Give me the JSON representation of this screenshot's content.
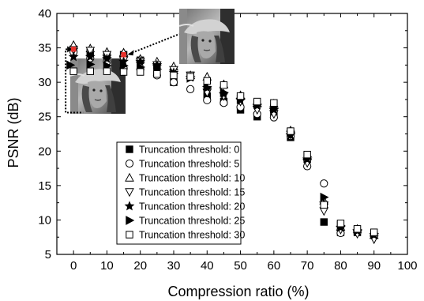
{
  "chart_data": {
    "type": "scatter",
    "xlabel": "Compression ratio (%)",
    "ylabel": "PSNR (dB)",
    "xlim": [
      -5,
      100
    ],
    "ylim": [
      5,
      40
    ],
    "xticks": [
      "0",
      "10",
      "20",
      "30",
      "40",
      "50",
      "60",
      "70",
      "80",
      "90",
      "100"
    ],
    "yticks": [
      "5",
      "10",
      "15",
      "20",
      "25",
      "30",
      "35",
      "40"
    ],
    "grid": false,
    "legend_position": "bottom-center",
    "series": [
      {
        "name": "Truncation threshold: 0",
        "marker": "filled-square",
        "points": [
          [
            0,
            34.8
          ],
          [
            5,
            34.3
          ],
          [
            10,
            33.9
          ],
          [
            15,
            34.0
          ],
          [
            20,
            33.2
          ],
          [
            25,
            32.4
          ],
          [
            30,
            30.0
          ],
          [
            35,
            31.0
          ],
          [
            40,
            28.0
          ],
          [
            45,
            27.2
          ],
          [
            50,
            26.0
          ],
          [
            55,
            25.0
          ],
          [
            60,
            25.6
          ],
          [
            65,
            22.0
          ],
          [
            70,
            18.8
          ],
          [
            75,
            9.7
          ],
          [
            80,
            8.2
          ],
          [
            85,
            8.2
          ],
          [
            90,
            7.8
          ]
        ]
      },
      {
        "name": "Truncation threshold: 5",
        "marker": "open-circle",
        "points": [
          [
            0,
            34.4
          ],
          [
            5,
            33.5
          ],
          [
            10,
            33.0
          ],
          [
            15,
            32.0
          ],
          [
            20,
            31.9
          ],
          [
            25,
            31.0
          ],
          [
            30,
            30.0
          ],
          [
            35,
            29.0
          ],
          [
            40,
            27.4
          ],
          [
            45,
            27.0
          ],
          [
            50,
            26.4
          ],
          [
            55,
            25.4
          ],
          [
            60,
            24.9
          ],
          [
            65,
            22.2
          ],
          [
            70,
            17.8
          ],
          [
            75,
            15.3
          ],
          [
            80,
            8.1
          ],
          [
            85,
            8.2
          ],
          [
            90,
            8.0
          ]
        ]
      },
      {
        "name": "Truncation threshold: 10",
        "marker": "open-triangle-up",
        "points": [
          [
            0,
            35.4
          ],
          [
            5,
            34.9
          ],
          [
            10,
            34.4
          ],
          [
            15,
            34.3
          ],
          [
            20,
            33.4
          ],
          [
            25,
            33.0
          ],
          [
            30,
            32.3
          ],
          [
            35,
            31.0
          ],
          [
            40,
            30.8
          ],
          [
            45,
            29.7
          ],
          [
            50,
            28.1
          ],
          [
            55,
            27.0
          ],
          [
            60,
            26.9
          ],
          [
            65,
            23.0
          ],
          [
            70,
            19.3
          ],
          [
            75,
            12.8
          ],
          [
            80,
            9.0
          ],
          [
            85,
            8.7
          ],
          [
            90,
            7.8
          ]
        ]
      },
      {
        "name": "Truncation threshold: 15",
        "marker": "open-triangle-down",
        "points": [
          [
            0,
            34.7
          ],
          [
            5,
            34.6
          ],
          [
            10,
            34.0
          ],
          [
            15,
            33.2
          ],
          [
            20,
            33.0
          ],
          [
            25,
            32.5
          ],
          [
            30,
            31.8
          ],
          [
            35,
            31.0
          ],
          [
            40,
            28.5
          ],
          [
            45,
            28.0
          ],
          [
            50,
            27.2
          ],
          [
            55,
            26.0
          ],
          [
            60,
            25.4
          ],
          [
            65,
            22.4
          ],
          [
            70,
            18.3
          ],
          [
            75,
            11.3
          ],
          [
            80,
            8.6
          ],
          [
            85,
            8.0
          ],
          [
            90,
            7.2
          ]
        ]
      },
      {
        "name": "Truncation threshold: 20",
        "marker": "filled-star",
        "points": [
          [
            0,
            33.7
          ],
          [
            5,
            33.7
          ],
          [
            10,
            33.4
          ],
          [
            15,
            33.0
          ],
          [
            20,
            33.0
          ],
          [
            25,
            32.5
          ],
          [
            30,
            31.4
          ],
          [
            35,
            30.7
          ],
          [
            40,
            29.2
          ],
          [
            45,
            28.3
          ],
          [
            50,
            27.4
          ],
          [
            55,
            26.6
          ],
          [
            60,
            26.0
          ],
          [
            65,
            22.3
          ],
          [
            70,
            18.8
          ],
          [
            75,
            12.4
          ],
          [
            80,
            8.9
          ],
          [
            85,
            8.4
          ],
          [
            90,
            7.8
          ]
        ]
      },
      {
        "name": "Truncation threshold: 25",
        "marker": "filled-triangle-right",
        "points": [
          [
            -1,
            32.5
          ],
          [
            5,
            32.6
          ],
          [
            10,
            32.4
          ],
          [
            15,
            32.4
          ],
          [
            20,
            32.2
          ],
          [
            25,
            31.9
          ],
          [
            30,
            31.3
          ],
          [
            35,
            30.6
          ],
          [
            40,
            29.2
          ],
          [
            45,
            28.5
          ],
          [
            50,
            27.5
          ],
          [
            55,
            26.8
          ],
          [
            60,
            26.2
          ],
          [
            65,
            22.7
          ],
          [
            70,
            19.2
          ],
          [
            75,
            13.3
          ],
          [
            80,
            9.2
          ],
          [
            85,
            8.5
          ],
          [
            90,
            8.0
          ]
        ]
      },
      {
        "name": "Truncation threshold: 30",
        "marker": "open-square",
        "points": [
          [
            0,
            31.6
          ],
          [
            5,
            31.6
          ],
          [
            10,
            31.6
          ],
          [
            15,
            31.5
          ],
          [
            20,
            31.5
          ],
          [
            25,
            31.2
          ],
          [
            30,
            31.0
          ],
          [
            35,
            30.8
          ],
          [
            40,
            30.2
          ],
          [
            45,
            29.6
          ],
          [
            50,
            28.0
          ],
          [
            55,
            27.2
          ],
          [
            60,
            27.0
          ],
          [
            65,
            22.9
          ],
          [
            70,
            19.5
          ],
          [
            75,
            12.2
          ],
          [
            80,
            9.5
          ],
          [
            85,
            8.7
          ],
          [
            90,
            8.2
          ]
        ]
      }
    ],
    "highlighted_points": [
      [
        0,
        34.8
      ],
      [
        15,
        34.0
      ]
    ],
    "highlight_color": "#e8302a",
    "inset_images": [
      "grayscale-portrait-image",
      "grayscale-portrait-image"
    ]
  }
}
